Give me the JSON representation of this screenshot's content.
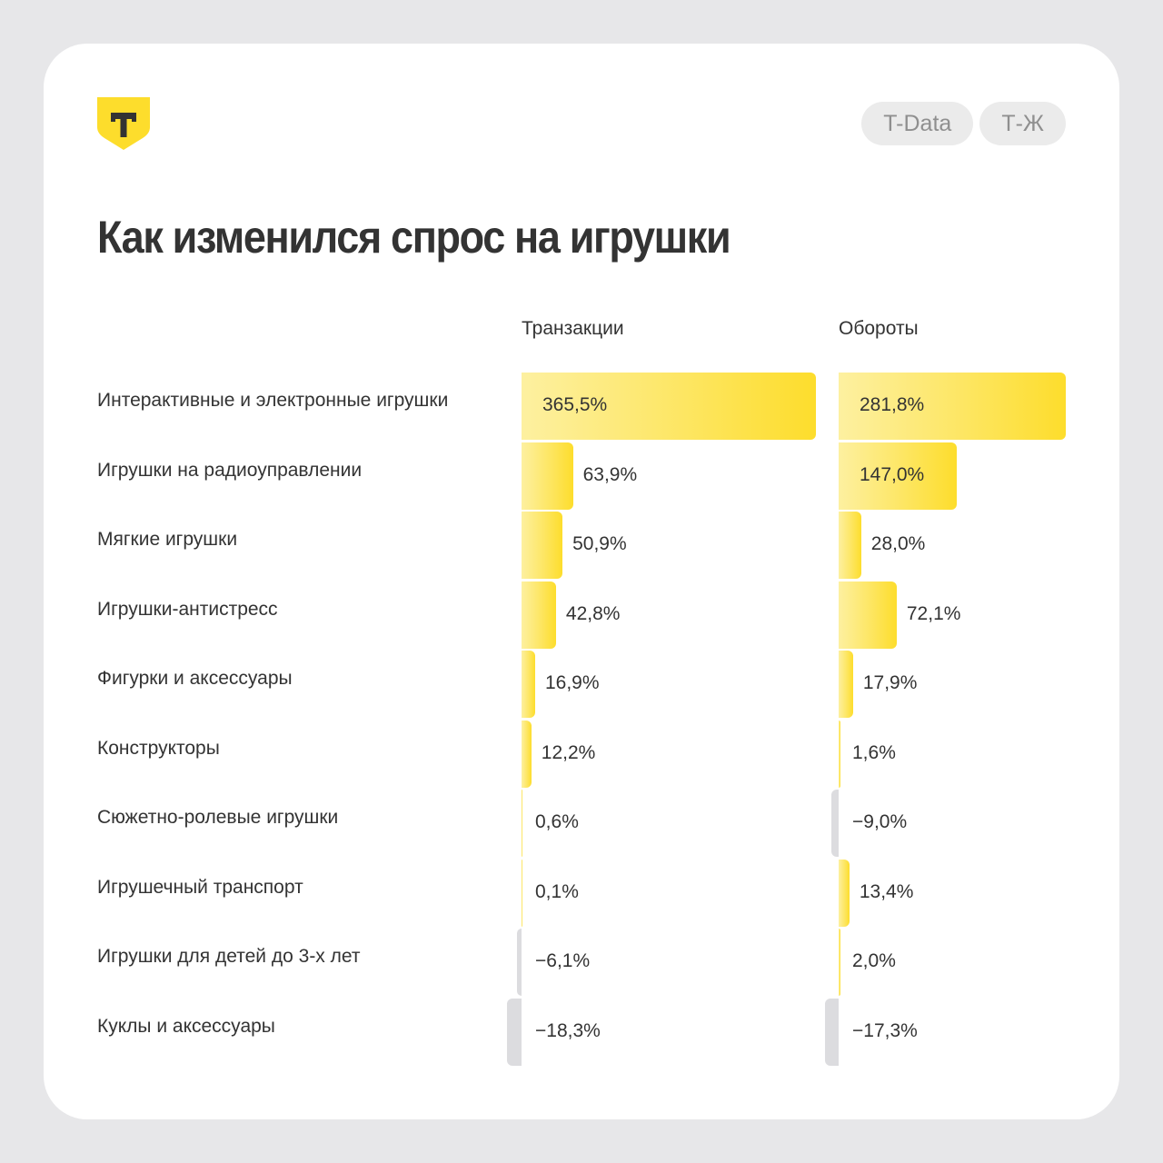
{
  "brand": {
    "logo_icon": "t-bank-shield-icon",
    "logo_letter": "T",
    "colors": {
      "background": "#e7e7e9",
      "card": "#ffffff",
      "accent_yellow": "#fddd2c",
      "accent_yellow_light": "#fdf0a0",
      "negative_gray": "#dcdcdf",
      "text": "#333333",
      "pill_bg": "#ebebeb",
      "pill_text": "#8f8f8f"
    }
  },
  "header": {
    "pills": [
      {
        "label": "T-Data"
      },
      {
        "label": "Т-Ж"
      }
    ]
  },
  "title": "Как изменился спрос на игрушки",
  "columns": {
    "transactions": "Транзакции",
    "turnover": "Обороты"
  },
  "rows": [
    {
      "label": "Интерактивные и электронные игрушки",
      "transactions": "365,5%",
      "turnover": "281,8%"
    },
    {
      "label": "Игрушки на радиоуправлении",
      "transactions": "63,9%",
      "turnover": "147,0%"
    },
    {
      "label": "Мягкие игрушки",
      "transactions": "50,9%",
      "turnover": "28,0%"
    },
    {
      "label": "Игрушки-антистресс",
      "transactions": "42,8%",
      "turnover": "72,1%"
    },
    {
      "label": "Фигурки и аксессуары",
      "transactions": "16,9%",
      "turnover": "17,9%"
    },
    {
      "label": "Конструкторы",
      "transactions": "12,2%",
      "turnover": "1,6%"
    },
    {
      "label": "Сюжетно-ролевые игрушки",
      "transactions": "0,6%",
      "turnover": "−9,0%"
    },
    {
      "label": "Игрушечный транспорт",
      "transactions": "0,1%",
      "turnover": "13,4%"
    },
    {
      "label": "Игрушки для детей до 3-х лет",
      "transactions": "−6,1%",
      "turnover": "2,0%"
    },
    {
      "label": "Куклы и аксессуары",
      "transactions": "−18,3%",
      "turnover": "−17,3%"
    }
  ],
  "chart_data": {
    "type": "bar",
    "orientation": "horizontal",
    "title": "Как изменился спрос на игрушки",
    "xlabel": "",
    "ylabel": "",
    "unit": "%",
    "grid": false,
    "legend": "none",
    "categories": [
      "Интерактивные и электронные игрушки",
      "Игрушки на радиоуправлении",
      "Мягкие игрушки",
      "Игрушки-антистресс",
      "Фигурки и аксессуары",
      "Конструкторы",
      "Сюжетно-ролевые игрушки",
      "Игрушечный транспорт",
      "Игрушки для детей до 3-х лет",
      "Куклы и аксессуары"
    ],
    "series": [
      {
        "name": "Транзакции",
        "values": [
          365.5,
          63.9,
          50.9,
          42.8,
          16.9,
          12.2,
          0.6,
          0.1,
          -6.1,
          -18.3
        ]
      },
      {
        "name": "Обороты",
        "values": [
          281.8,
          147.0,
          28.0,
          72.1,
          17.9,
          1.6,
          -9.0,
          13.4,
          2.0,
          -17.3
        ]
      }
    ]
  }
}
